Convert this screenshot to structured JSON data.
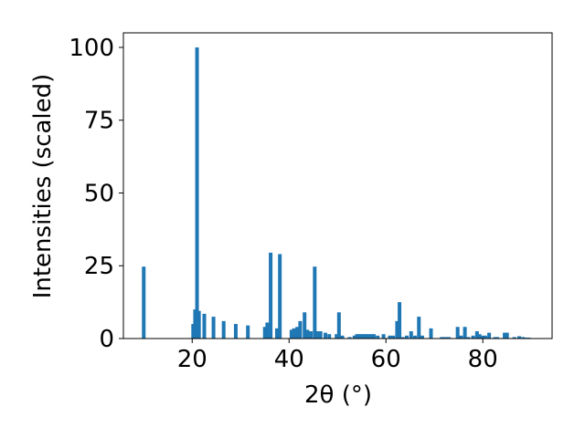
{
  "chart_data": {
    "type": "bar",
    "xlabel": "2θ (°)",
    "ylabel": "Intensities (scaled)",
    "color": "#1f77b4",
    "x": [
      10.0,
      20.2,
      20.6,
      21.0,
      21.4,
      22.5,
      24.4,
      26.5,
      29.0,
      31.5,
      35.0,
      35.5,
      36.2,
      37.5,
      38.1,
      40.5,
      41.0,
      41.7,
      42.3,
      43.2,
      43.8,
      44.5,
      45.3,
      45.8,
      46.5,
      47.5,
      48.3,
      49.8,
      50.3,
      51.0,
      52.5,
      53.5,
      54.0,
      54.5,
      55.0,
      55.5,
      56.0,
      56.5,
      57.0,
      57.5,
      58.3,
      59.5,
      60.8,
      61.5,
      62.3,
      62.8,
      63.5,
      64.3,
      65.2,
      66.0,
      66.8,
      67.5,
      69.3,
      71.5,
      72.0,
      72.5,
      73.0,
      74.8,
      75.5,
      76.3,
      77.0,
      78.0,
      78.8,
      79.3,
      79.8,
      80.5,
      81.3,
      82.5,
      83.0,
      84.5,
      85.0,
      86.5,
      87.5,
      88.3,
      89.0,
      89.5
    ],
    "values": [
      24.7,
      5,
      10,
      100,
      9.5,
      8.5,
      7.5,
      6,
      5,
      4.5,
      4,
      5.5,
      29.5,
      3.5,
      29,
      3,
      3.5,
      4,
      6,
      9,
      3,
      2.5,
      24.7,
      2.5,
      2.5,
      2,
      1.5,
      1.5,
      9,
      1,
      0.5,
      1,
      1.5,
      1.5,
      1.5,
      1.5,
      1.5,
      1.5,
      1.5,
      1.5,
      1,
      1.5,
      1,
      1,
      6,
      12.5,
      0.5,
      1,
      2.5,
      1,
      7.5,
      1,
      3.5,
      0.5,
      0.5,
      0.5,
      0.5,
      4,
      1,
      4,
      0.5,
      1,
      2.5,
      1.5,
      1,
      1,
      2,
      0.5,
      0.5,
      2,
      2,
      0.5,
      0.8,
      0.5,
      0.3,
      0.3
    ],
    "xlim": [
      5.8,
      94.3
    ],
    "ylim": [
      0,
      105
    ],
    "xticks": [
      20,
      40,
      60,
      80
    ],
    "yticks": [
      0,
      25,
      50,
      75,
      100
    ]
  }
}
